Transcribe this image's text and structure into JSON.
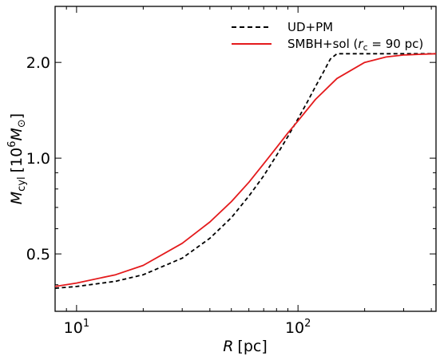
{
  "chart_data": {
    "type": "line",
    "xscale": "log",
    "yscale": "log",
    "xlim": [
      8,
      420
    ],
    "ylim": [
      0.33,
      3.0
    ],
    "xticks": [
      {
        "value": 10,
        "base": "10",
        "exp": "1"
      },
      {
        "value": 100,
        "base": "10",
        "exp": "2"
      }
    ],
    "yticks": [
      {
        "value": 0.5,
        "label": "0.5"
      },
      {
        "value": 1.0,
        "label": "1.0"
      },
      {
        "value": 2.0,
        "label": "2.0"
      }
    ],
    "xlabel": {
      "var": "R",
      "unit": "[pc]"
    },
    "ylabel": {
      "var": "M",
      "sub": "cyl",
      "unit_prefix": "[10",
      "unit_exp": "6",
      "unit_var": "M",
      "unit_sub": "⊙",
      "unit_suffix": "]"
    },
    "legend_position": "top-right",
    "grid": false,
    "series": [
      {
        "name": "UD+PM",
        "color": "#000000",
        "dash": "dashed",
        "x": [
          8,
          10,
          15,
          20,
          30,
          40,
          50,
          60,
          70,
          80,
          90,
          100,
          110,
          120,
          130,
          140,
          150,
          200,
          300,
          420
        ],
        "y": [
          0.39,
          0.395,
          0.41,
          0.43,
          0.485,
          0.56,
          0.65,
          0.76,
          0.88,
          1.02,
          1.17,
          1.33,
          1.5,
          1.68,
          1.86,
          2.05,
          2.13,
          2.13,
          2.13,
          2.13
        ]
      },
      {
        "name": "SMBH+sol (r_c = 90 pc)",
        "legend": {
          "prefix": "SMBH+sol (",
          "var": "r",
          "sub": "c",
          "suffix": " = 90 pc)"
        },
        "color": "#e41a1c",
        "dash": "solid",
        "x": [
          8,
          10,
          15,
          20,
          30,
          40,
          50,
          60,
          70,
          80,
          90,
          100,
          120,
          150,
          200,
          250,
          300,
          350,
          420
        ],
        "y": [
          0.395,
          0.405,
          0.43,
          0.46,
          0.54,
          0.63,
          0.73,
          0.84,
          0.96,
          1.08,
          1.2,
          1.31,
          1.53,
          1.78,
          2.0,
          2.08,
          2.11,
          2.12,
          2.13
        ]
      }
    ]
  }
}
